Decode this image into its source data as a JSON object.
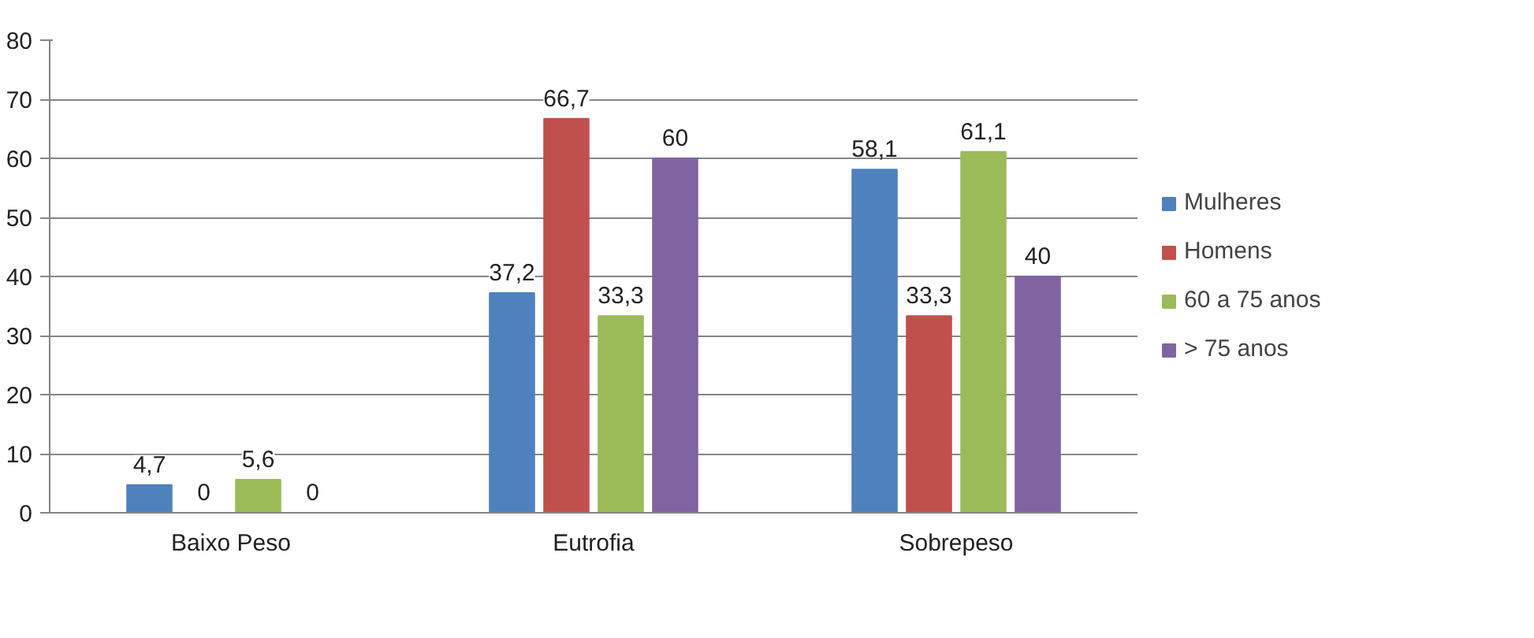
{
  "chart_data": {
    "type": "bar",
    "categories": [
      "Baixo Peso",
      "Eutrofia",
      "Sobrepeso"
    ],
    "series": [
      {
        "name": "Mulheres",
        "color": "#4f81bd",
        "values": [
          4.7,
          37.2,
          58.1
        ],
        "value_labels": [
          "4,7",
          "37,2",
          "58,1"
        ]
      },
      {
        "name": "Homens",
        "color": "#c0504d",
        "values": [
          0,
          66.7,
          33.3
        ],
        "value_labels": [
          "0",
          "66,7",
          "33,3"
        ]
      },
      {
        "name": "60 a 75 anos",
        "color": "#9bbb59",
        "values": [
          5.6,
          33.3,
          61.1
        ],
        "value_labels": [
          "5,6",
          "33,3",
          "61,1"
        ]
      },
      {
        "name": "> 75 anos",
        "color": "#8064a2",
        "values": [
          0,
          60,
          40
        ],
        "value_labels": [
          "0",
          "60",
          "40"
        ]
      }
    ],
    "ylim": [
      0,
      80
    ],
    "yticks": [
      0,
      10,
      20,
      30,
      40,
      50,
      60,
      70,
      80
    ],
    "grid": "y",
    "legend": "right"
  }
}
